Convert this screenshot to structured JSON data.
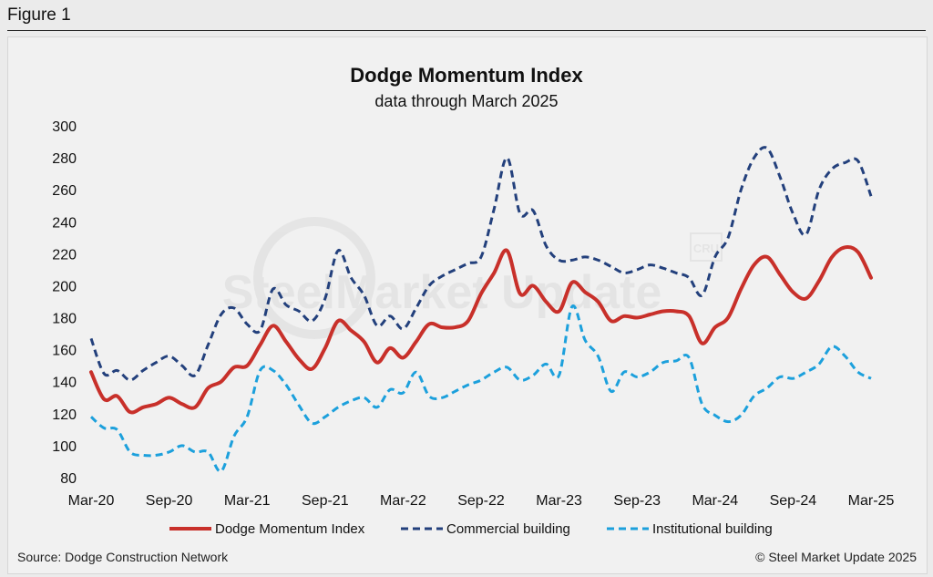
{
  "figure_label": "Figure 1",
  "source": "Source: Dodge Construction Network",
  "copyright": "© Steel Market Update 2025",
  "watermark": "SteelMarket Update",
  "watermark_badge": "CRU",
  "chart_data": {
    "type": "line",
    "title": "Dodge Momentum Index",
    "subtitle": "data through March 2025",
    "xlabel": "",
    "ylabel": "",
    "ylim": [
      80,
      300
    ],
    "yticks": [
      80,
      100,
      120,
      140,
      160,
      180,
      200,
      220,
      240,
      260,
      280,
      300
    ],
    "xtick_labels": [
      "Mar-20",
      "Sep-20",
      "Mar-21",
      "Sep-21",
      "Mar-22",
      "Sep-22",
      "Mar-23",
      "Sep-23",
      "Mar-24",
      "Sep-24",
      "Mar-25"
    ],
    "x": [
      "Mar-20",
      "Apr-20",
      "May-20",
      "Jun-20",
      "Jul-20",
      "Aug-20",
      "Sep-20",
      "Oct-20",
      "Nov-20",
      "Dec-20",
      "Jan-21",
      "Feb-21",
      "Mar-21",
      "Apr-21",
      "May-21",
      "Jun-21",
      "Jul-21",
      "Aug-21",
      "Sep-21",
      "Oct-21",
      "Nov-21",
      "Dec-21",
      "Jan-22",
      "Feb-22",
      "Mar-22",
      "Apr-22",
      "May-22",
      "Jun-22",
      "Jul-22",
      "Aug-22",
      "Sep-22",
      "Oct-22",
      "Nov-22",
      "Dec-22",
      "Jan-23",
      "Feb-23",
      "Mar-23",
      "Apr-23",
      "May-23",
      "Jun-23",
      "Jul-23",
      "Aug-23",
      "Sep-23",
      "Oct-23",
      "Nov-23",
      "Dec-23",
      "Jan-24",
      "Feb-24",
      "Mar-24",
      "Apr-24",
      "May-24",
      "Jun-24",
      "Jul-24",
      "Aug-24",
      "Sep-24",
      "Oct-24",
      "Nov-24",
      "Dec-24",
      "Jan-25",
      "Feb-25",
      "Mar-25"
    ],
    "grid": false,
    "legend_position": "bottom",
    "series": [
      {
        "name": "Dodge Momentum Index",
        "color": "#c8302a",
        "dash": "solid",
        "values": [
          146,
          129,
          131,
          121,
          124,
          126,
          130,
          126,
          124,
          136,
          140,
          149,
          150,
          163,
          175,
          165,
          154,
          148,
          161,
          178,
          172,
          165,
          152,
          161,
          155,
          165,
          176,
          174,
          174,
          178,
          195,
          208,
          222,
          195,
          200,
          190,
          184,
          202,
          196,
          190,
          178,
          181,
          180,
          182,
          184,
          184,
          181,
          164,
          174,
          180,
          198,
          213,
          218,
          207,
          196,
          192,
          203,
          218,
          224,
          221,
          205
        ]
      },
      {
        "name": "Commercial building",
        "color": "#23407c",
        "dash": "dashed",
        "values": [
          167,
          145,
          147,
          141,
          147,
          152,
          156,
          150,
          144,
          163,
          182,
          186,
          176,
          172,
          198,
          188,
          184,
          178,
          192,
          222,
          205,
          194,
          175,
          181,
          173,
          186,
          200,
          206,
          210,
          214,
          218,
          248,
          280,
          245,
          247,
          225,
          216,
          216,
          218,
          216,
          212,
          208,
          210,
          213,
          211,
          208,
          205,
          194,
          218,
          230,
          260,
          280,
          286,
          268,
          245,
          232,
          260,
          273,
          277,
          278,
          256
        ]
      },
      {
        "name": "Institutional building",
        "color": "#1ca0dc",
        "dash": "dashed",
        "values": [
          118,
          111,
          110,
          96,
          94,
          94,
          96,
          100,
          96,
          96,
          84,
          106,
          118,
          147,
          147,
          138,
          125,
          114,
          118,
          124,
          128,
          130,
          124,
          135,
          133,
          146,
          131,
          130,
          134,
          138,
          141,
          146,
          149,
          141,
          144,
          151,
          144,
          187,
          166,
          156,
          134,
          146,
          143,
          146,
          152,
          153,
          155,
          126,
          119,
          115,
          119,
          131,
          136,
          143,
          142,
          146,
          151,
          162,
          156,
          146,
          142
        ]
      }
    ]
  }
}
